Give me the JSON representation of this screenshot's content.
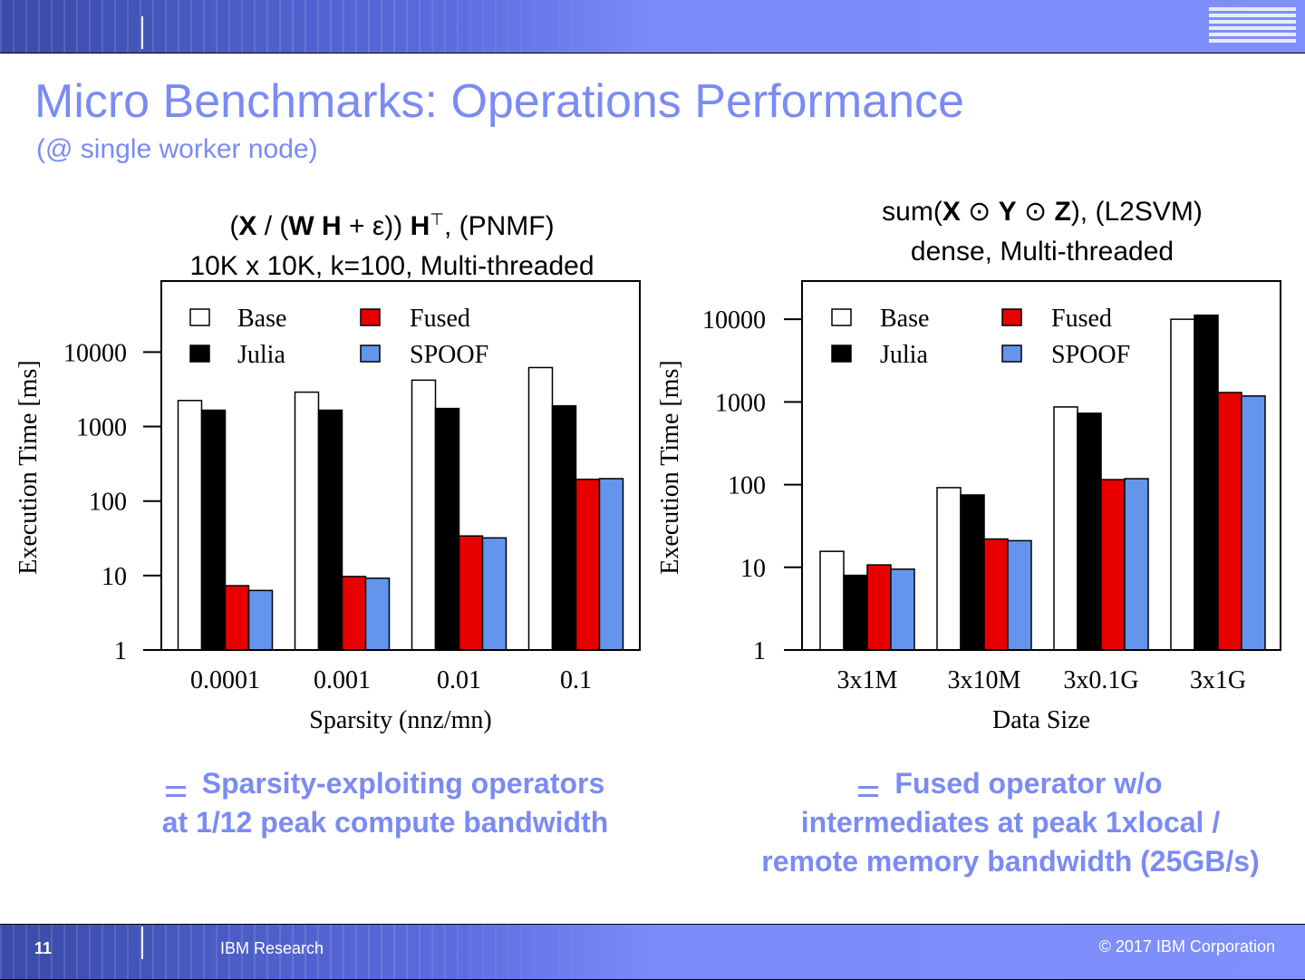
{
  "header": {
    "logo": "IBM"
  },
  "slide": {
    "title": "Micro Benchmarks: Operations Performance",
    "subtitle": "(@ single worker node)"
  },
  "footer": {
    "page": "11",
    "org": "IBM Research",
    "copyright": "© 2017 IBM Corporation"
  },
  "colors": {
    "accent": "#7b8bf3",
    "base": "#ffffff",
    "julia": "#000000",
    "fused": "#e80000",
    "spoof": "#6495ed"
  },
  "chart_titles": [
    {
      "line1": [
        {
          "t": "(",
          "b": false
        },
        {
          "t": "X",
          "b": true
        },
        {
          "t": " / (",
          "b": false
        },
        {
          "t": "W H",
          "b": true
        },
        {
          "t": " + ε)) ",
          "b": false
        },
        {
          "t": "H",
          "b": true
        },
        {
          "t": "⊤",
          "b": false,
          "sup": true
        },
        {
          "t": ", (PNMF)",
          "b": false
        }
      ],
      "line2": "10K x 10K, k=100, Multi-threaded"
    },
    {
      "line1": [
        {
          "t": "sum(",
          "b": false
        },
        {
          "t": "X",
          "b": true
        },
        {
          "t": " ⊙ ",
          "b": false
        },
        {
          "t": "Y",
          "b": true
        },
        {
          "t": " ⊙ ",
          "b": false
        },
        {
          "t": "Z",
          "b": true
        },
        {
          "t": "), (L2SVM)",
          "b": false
        }
      ],
      "line2": "dense, Multi-threaded"
    }
  ],
  "chart_data": [
    {
      "type": "bar",
      "ylabel": "Execution Time [ms]",
      "xlabel": "Sparsity (nnz/mn)",
      "yscale": "log",
      "ylim": [
        1,
        90000
      ],
      "yticks": [
        "1",
        "10",
        "100",
        "1000",
        "10000"
      ],
      "categories": [
        "0.0001",
        "0.001",
        "0.01",
        "0.1"
      ],
      "legend": "top, inside, 2 columns",
      "series": [
        {
          "name": "Base",
          "color": "#ffffff",
          "values": [
            2240,
            2900,
            4200,
            6200
          ]
        },
        {
          "name": "Julia",
          "color": "#000000",
          "values": [
            1660,
            1660,
            1750,
            1900
          ]
        },
        {
          "name": "Fused",
          "color": "#e80000",
          "values": [
            7.3,
            9.7,
            34,
            196
          ]
        },
        {
          "name": "SPOOF",
          "color": "#6495ed",
          "values": [
            6.3,
            9.2,
            32,
            200
          ]
        }
      ]
    },
    {
      "type": "bar",
      "ylabel": "Execution Time [ms]",
      "xlabel": "Data Size",
      "yscale": "log",
      "ylim": [
        1,
        29000
      ],
      "yticks": [
        "1",
        "10",
        "100",
        "1000",
        "10000"
      ],
      "categories": [
        "3x1M",
        "3x10M",
        "3x0.1G",
        "3x1G"
      ],
      "legend": "top, inside, 2 columns",
      "series": [
        {
          "name": "Base",
          "color": "#ffffff",
          "values": [
            15.6,
            92,
            870,
            10000
          ]
        },
        {
          "name": "Julia",
          "color": "#000000",
          "values": [
            8,
            75,
            730,
            11200
          ]
        },
        {
          "name": "Fused",
          "color": "#e80000",
          "values": [
            10.7,
            22,
            115,
            1300
          ]
        },
        {
          "name": "SPOOF",
          "color": "#6495ed",
          "values": [
            9.5,
            21,
            118,
            1180
          ]
        }
      ]
    }
  ],
  "bullets": [
    {
      "line1": "Sparsity-exploiting operators",
      "line2": "at 1/12 peak compute bandwidth"
    },
    {
      "line1": "Fused operator w/o",
      "line2": "intermediates at peak 1xlocal /",
      "line3": "remote memory bandwidth (25GB/s)"
    }
  ]
}
